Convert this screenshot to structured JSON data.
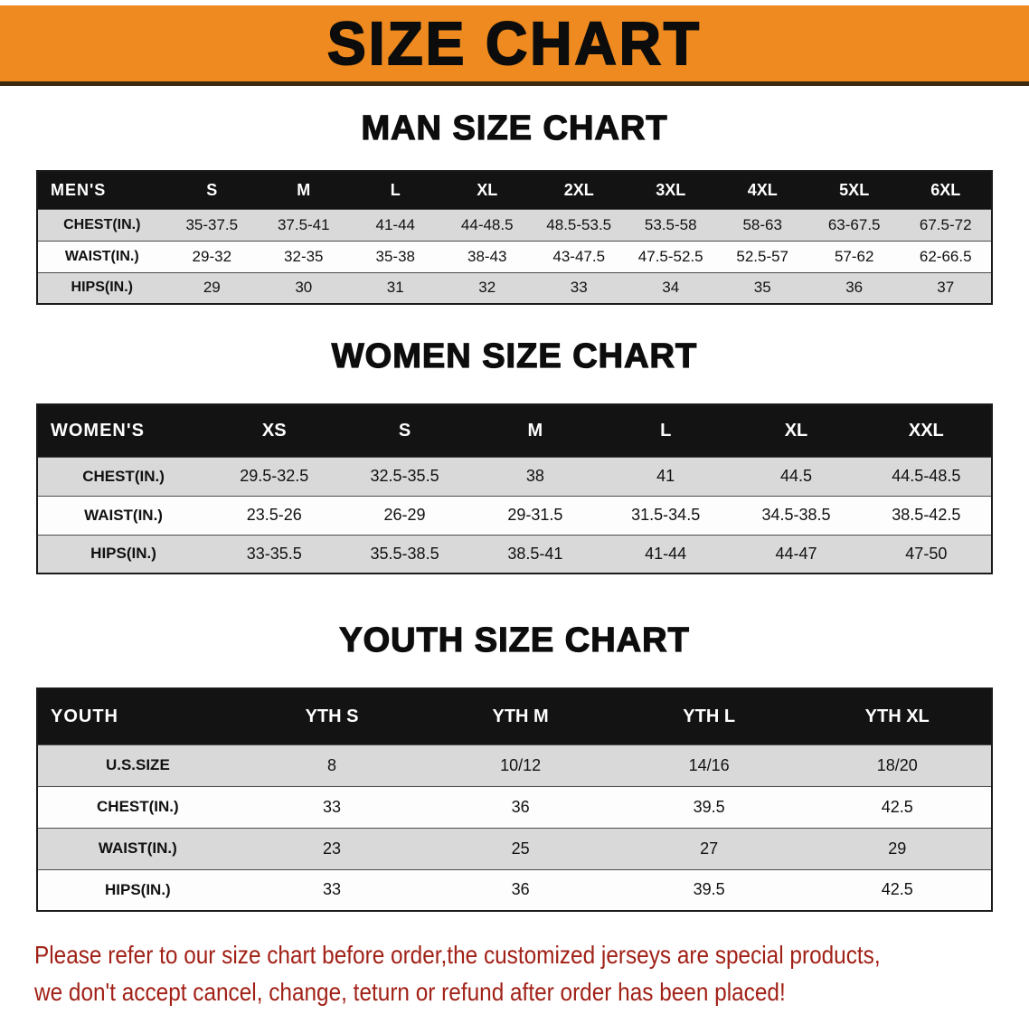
{
  "banner": {
    "title": "SIZE CHART"
  },
  "colors": {
    "accent_orange": "#ee8a1f",
    "header_black": "#131313",
    "row_gray": "#d9d9d9",
    "note_red": "#a12117"
  },
  "men": {
    "heading": "MAN SIZE CHART",
    "table": {
      "header_label": "MEN'S",
      "columns": [
        "S",
        "M",
        "L",
        "XL",
        "2XL",
        "3XL",
        "4XL",
        "5XL",
        "6XL"
      ],
      "rows": [
        {
          "label": "CHEST(IN.)",
          "values": [
            "35-37.5",
            "37.5-41",
            "41-44",
            "44-48.5",
            "48.5-53.5",
            "53.5-58",
            "58-63",
            "63-67.5",
            "67.5-72"
          ]
        },
        {
          "label": "WAIST(IN.)",
          "values": [
            "29-32",
            "32-35",
            "35-38",
            "38-43",
            "43-47.5",
            "47.5-52.5",
            "52.5-57",
            "57-62",
            "62-66.5"
          ]
        },
        {
          "label": "HIPS(IN.)",
          "values": [
            "29",
            "30",
            "31",
            "32",
            "33",
            "34",
            "35",
            "36",
            "37"
          ]
        }
      ]
    }
  },
  "women": {
    "heading": "WOMEN SIZE CHART",
    "table": {
      "header_label": "WOMEN'S",
      "columns": [
        "XS",
        "S",
        "M",
        "L",
        "XL",
        "XXL"
      ],
      "rows": [
        {
          "label": "CHEST(IN.)",
          "values": [
            "29.5-32.5",
            "32.5-35.5",
            "38",
            "41",
            "44.5",
            "44.5-48.5"
          ]
        },
        {
          "label": "WAIST(IN.)",
          "values": [
            "23.5-26",
            "26-29",
            "29-31.5",
            "31.5-34.5",
            "34.5-38.5",
            "38.5-42.5"
          ]
        },
        {
          "label": "HIPS(IN.)",
          "values": [
            "33-35.5",
            "35.5-38.5",
            "38.5-41",
            "41-44",
            "44-47",
            "47-50"
          ]
        }
      ]
    }
  },
  "youth": {
    "heading": "YOUTH SIZE CHART",
    "table": {
      "header_label": "YOUTH",
      "columns": [
        "YTH S",
        "YTH M",
        "YTH L",
        "YTH XL"
      ],
      "rows": [
        {
          "label": "U.S.SIZE",
          "values": [
            "8",
            "10/12",
            "14/16",
            "18/20"
          ]
        },
        {
          "label": "CHEST(IN.)",
          "values": [
            "33",
            "36",
            "39.5",
            "42.5"
          ]
        },
        {
          "label": "WAIST(IN.)",
          "values": [
            "23",
            "25",
            "27",
            "29"
          ]
        },
        {
          "label": "HIPS(IN.)",
          "values": [
            "33",
            "36",
            "39.5",
            "42.5"
          ]
        }
      ]
    }
  },
  "footer": {
    "line1": "Please refer to our size chart before order,the customized jerseys are special products,",
    "line2": "we don't accept cancel, change, teturn or refund after order has been placed!"
  }
}
